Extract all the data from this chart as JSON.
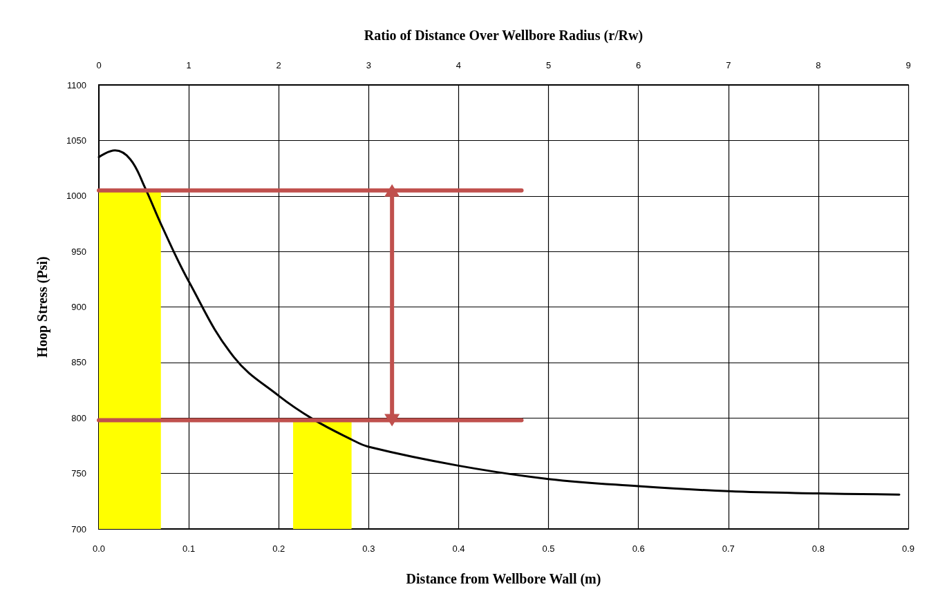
{
  "chart_data": {
    "type": "line",
    "x2label": "Ratio of Distance Over Wellbore Radius (r/Rw)",
    "xlabel": "Distance from Wellbore Wall (m)",
    "ylabel": "Hoop Stress (Psi)",
    "series": [
      {
        "type": "area",
        "color": "#ffff00",
        "x": [
          0,
          0.069
        ],
        "values": [
          1005,
          1005
        ]
      },
      {
        "type": "area",
        "color": "#ffff00",
        "x": [
          0.216,
          0.281
        ],
        "values": [
          798,
          798
        ]
      },
      {
        "color": "#000000",
        "x": [
          0,
          0.018,
          0.035,
          0.051,
          0.07,
          0.1,
          0.15,
          0.2,
          0.238,
          0.28,
          0.3,
          0.4,
          0.5,
          0.6,
          0.7,
          0.8,
          0.89
        ],
        "values": [
          1035,
          1041,
          1033,
          1008,
          973,
          923,
          855,
          820,
          799,
          781,
          774,
          757,
          745,
          738.6,
          734,
          732,
          731
        ]
      },
      {
        "type": "line",
        "color": "#c0504d",
        "x": [
          0,
          0.47
        ],
        "values": [
          1005,
          1005
        ]
      },
      {
        "type": "line",
        "color": "#c0504d",
        "x": [
          0,
          0.47
        ],
        "values": [
          798,
          798
        ]
      },
      {
        "type": "line",
        "color": "#c0504d",
        "marker": "triangle",
        "x": [
          0.326,
          0.326
        ],
        "values": [
          1005,
          798
        ]
      }
    ],
    "xlim": [
      0,
      0.9
    ],
    "xticks": [
      {
        "value": 0,
        "label": "0.0"
      },
      0.1,
      0.2,
      0.3,
      0.4,
      0.5,
      0.6,
      0.7,
      0.8,
      0.9
    ],
    "x2lim": [
      0,
      9
    ],
    "x2ticks": [
      0,
      1,
      2,
      3,
      4,
      5,
      6,
      7,
      8,
      9
    ],
    "ylim": [
      700,
      1100
    ],
    "yticks": [
      700,
      750,
      800,
      850,
      900,
      950,
      1000,
      1050,
      1100
    ],
    "grid": true
  }
}
